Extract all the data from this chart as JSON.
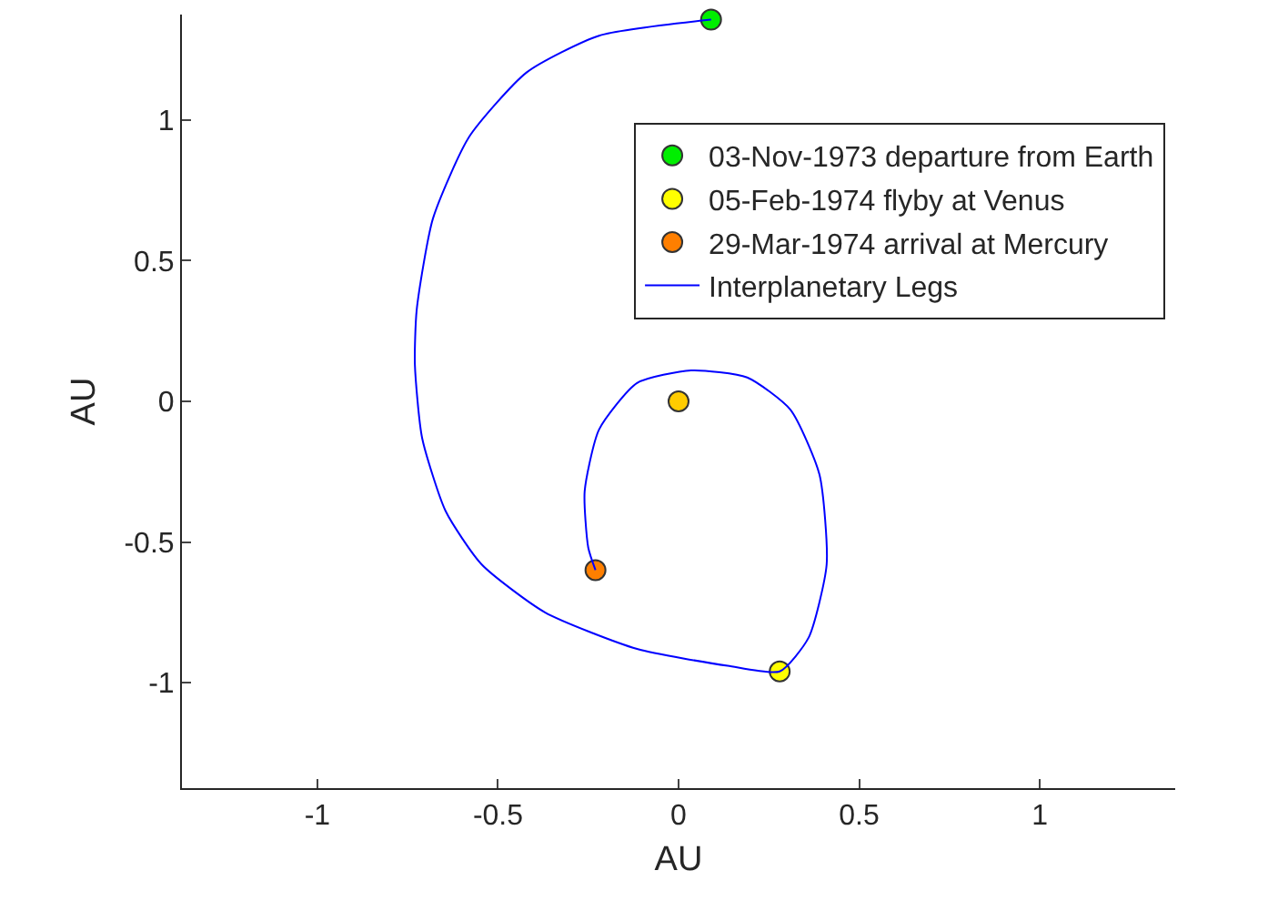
{
  "chart_data": {
    "type": "scatter",
    "xlabel": "AU",
    "ylabel": "AU",
    "xlim": [
      -1.375,
      1.375
    ],
    "ylim": [
      -1.375,
      1.375
    ],
    "xticks": [
      -1,
      -0.5,
      0,
      0.5,
      1
    ],
    "yticks": [
      -1,
      -0.5,
      0,
      0.5,
      1
    ],
    "grid": false,
    "legend": "top right",
    "series": [
      {
        "color": "#ffcc00",
        "marker": "circle",
        "x": [
          0
        ],
        "values": [
          0
        ]
      },
      {
        "name": "03-Nov-1973 departure from Earth",
        "color": "#00ee00",
        "marker": "circle",
        "x": [
          0.09
        ],
        "values": [
          1.357
        ]
      },
      {
        "name": "05-Feb-1974 flyby at Venus",
        "color": "#ffff00",
        "marker": "circle",
        "x": [
          0.28
        ],
        "values": [
          -0.96
        ]
      },
      {
        "name": "29-Mar-1974 arrival at Mercury",
        "color": "#ff7f00",
        "marker": "circle",
        "x": [
          -0.23
        ],
        "values": [
          -0.6
        ]
      },
      {
        "type": "line",
        "name": "Interplanetary Legs",
        "color": "#0000ff",
        "marker": "none",
        "line_style": "solid",
        "x": [
          0.09,
          -0.22,
          -0.42,
          -0.58,
          -0.68,
          -0.725,
          -0.73,
          -0.71,
          -0.645,
          -0.545,
          -0.37,
          -0.115,
          0.136,
          0.28,
          0.36,
          0.41,
          0.39,
          0.31,
          0.19,
          0.035,
          -0.115,
          -0.22,
          -0.26,
          -0.25,
          -0.23
        ],
        "values": [
          1.357,
          1.3,
          1.17,
          0.94,
          0.65,
          0.325,
          0.13,
          -0.13,
          -0.39,
          -0.58,
          -0.75,
          -0.88,
          -0.94,
          -0.96,
          -0.84,
          -0.58,
          -0.26,
          -0.03,
          0.085,
          0.11,
          0.065,
          -0.1,
          -0.32,
          -0.52,
          -0.6
        ]
      }
    ]
  }
}
